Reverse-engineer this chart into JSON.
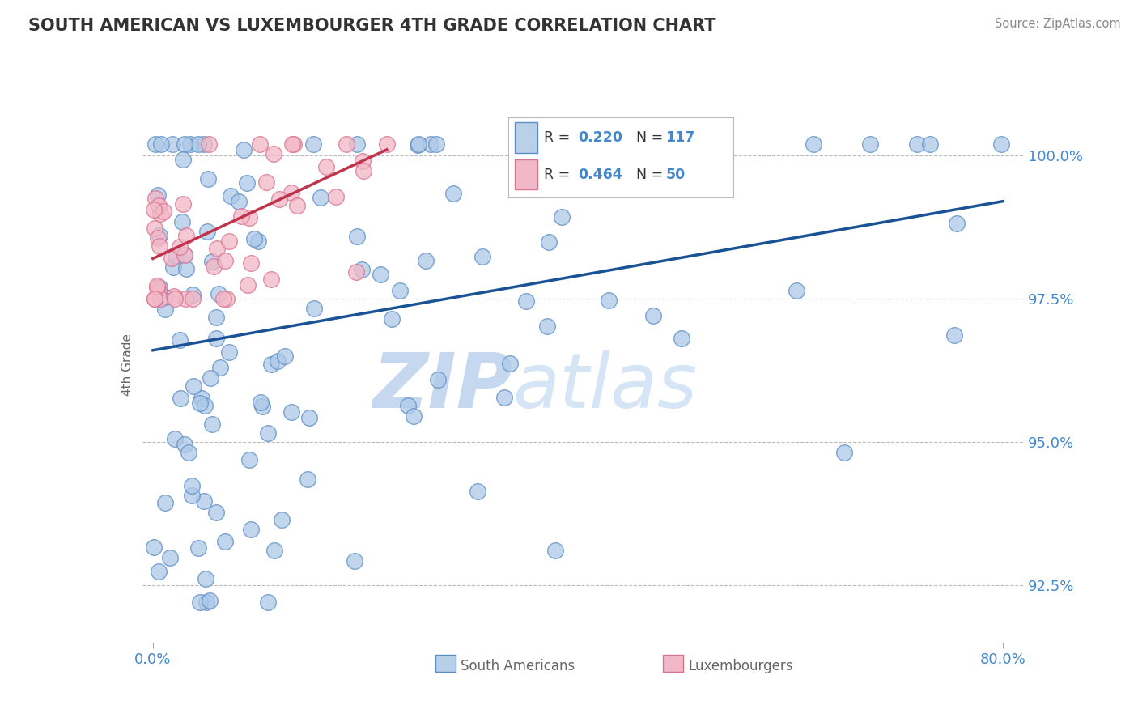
{
  "title": "SOUTH AMERICAN VS LUXEMBOURGER 4TH GRADE CORRELATION CHART",
  "source": "Source: ZipAtlas.com",
  "ylabel": "4th Grade",
  "blue_R": 0.22,
  "blue_N": 117,
  "pink_R": 0.464,
  "pink_N": 50,
  "blue_color": "#adc8e8",
  "blue_edge": "#5b8ec4",
  "pink_color": "#f2b8c6",
  "pink_edge": "#d97090",
  "trend_blue": "#1a5296",
  "trend_pink": "#c0334d",
  "legend_blue_fill": "#b8d0e8",
  "legend_blue_edge": "#5b8ec4",
  "legend_pink_fill": "#f0b8c8",
  "legend_pink_edge": "#d9748a",
  "watermark_zip": "ZIP",
  "watermark_atlas": "atlas",
  "watermark_color": "#d0dff0",
  "label_color": "#4488cc",
  "background": "#ffffff",
  "grid_color": "#bbbbbb",
  "yticks": [
    92.5,
    95.0,
    97.5,
    100.0
  ],
  "ymin": 91.5,
  "ymax": 101.2,
  "xmin": -1.0,
  "xmax": 82.0,
  "title_color": "#333333",
  "axis_label_color": "#666666",
  "source_color": "#888888",
  "blue_trend_x0": 0.0,
  "blue_trend_y0": 96.6,
  "blue_trend_x1": 80.0,
  "blue_trend_y1": 99.2,
  "pink_trend_x0": 0.0,
  "pink_trend_y0": 98.2,
  "pink_trend_x1": 22.0,
  "pink_trend_y1": 100.1
}
